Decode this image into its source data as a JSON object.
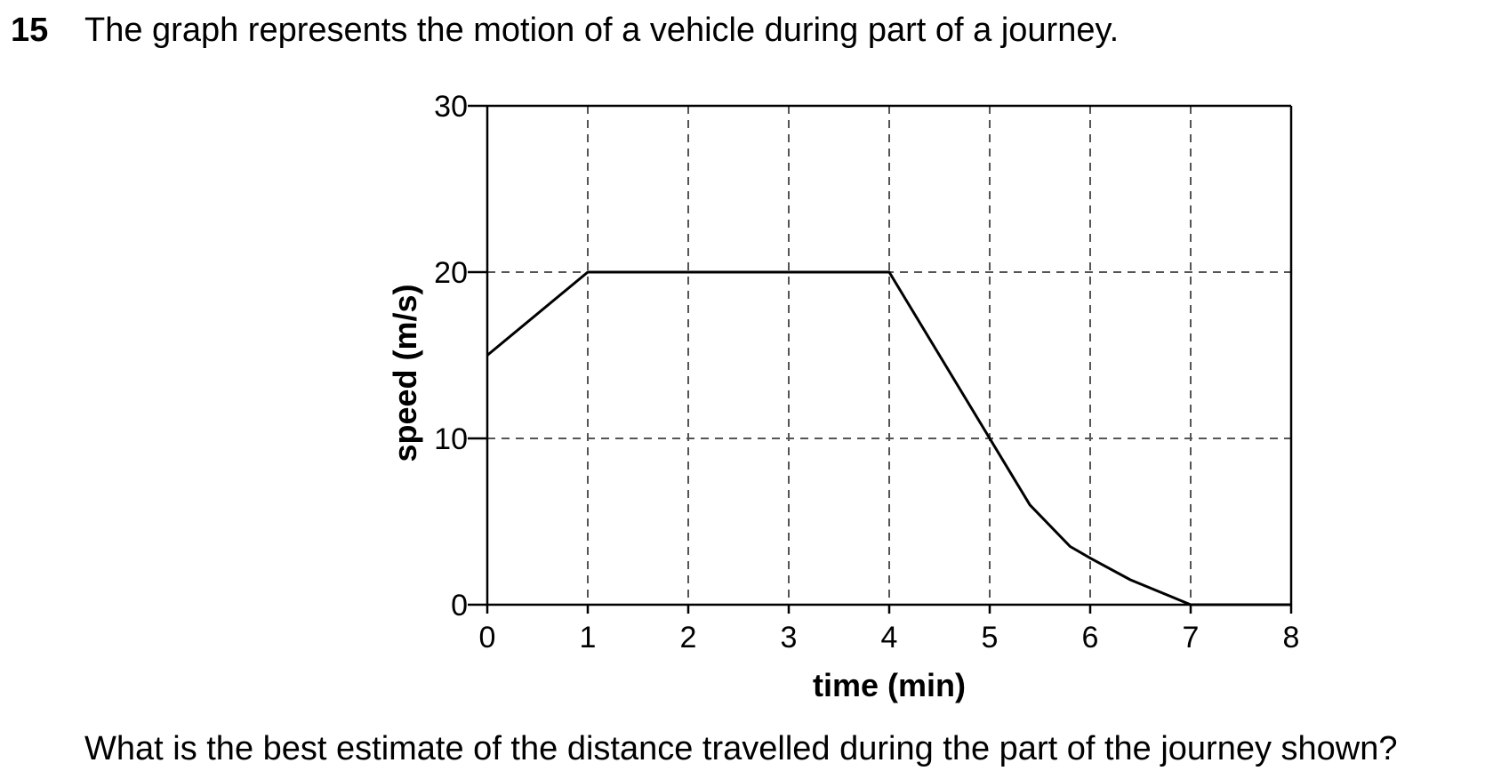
{
  "question": {
    "number": "15",
    "intro": "The graph represents the motion of a vehicle during part of a journey.",
    "prompt": "What is the best estimate of the distance travelled during the part of the journey shown?"
  },
  "chart_data": {
    "type": "line",
    "xlabel": "time (min)",
    "ylabel": "speed (m/s)",
    "xlim": [
      0,
      8
    ],
    "ylim": [
      0,
      30
    ],
    "x_ticks": [
      "0",
      "1",
      "2",
      "3",
      "4",
      "5",
      "6",
      "7",
      "8"
    ],
    "y_ticks": [
      "0",
      "10",
      "20",
      "30"
    ],
    "grid": "dashed",
    "series": [
      {
        "x": [
          0,
          1,
          4,
          5,
          5.4,
          5.8,
          6,
          6.4,
          6.8,
          7,
          8
        ],
        "y": [
          15,
          20,
          20,
          10,
          6,
          3.5,
          2.8,
          1.5,
          0.5,
          0,
          0
        ]
      }
    ]
  }
}
